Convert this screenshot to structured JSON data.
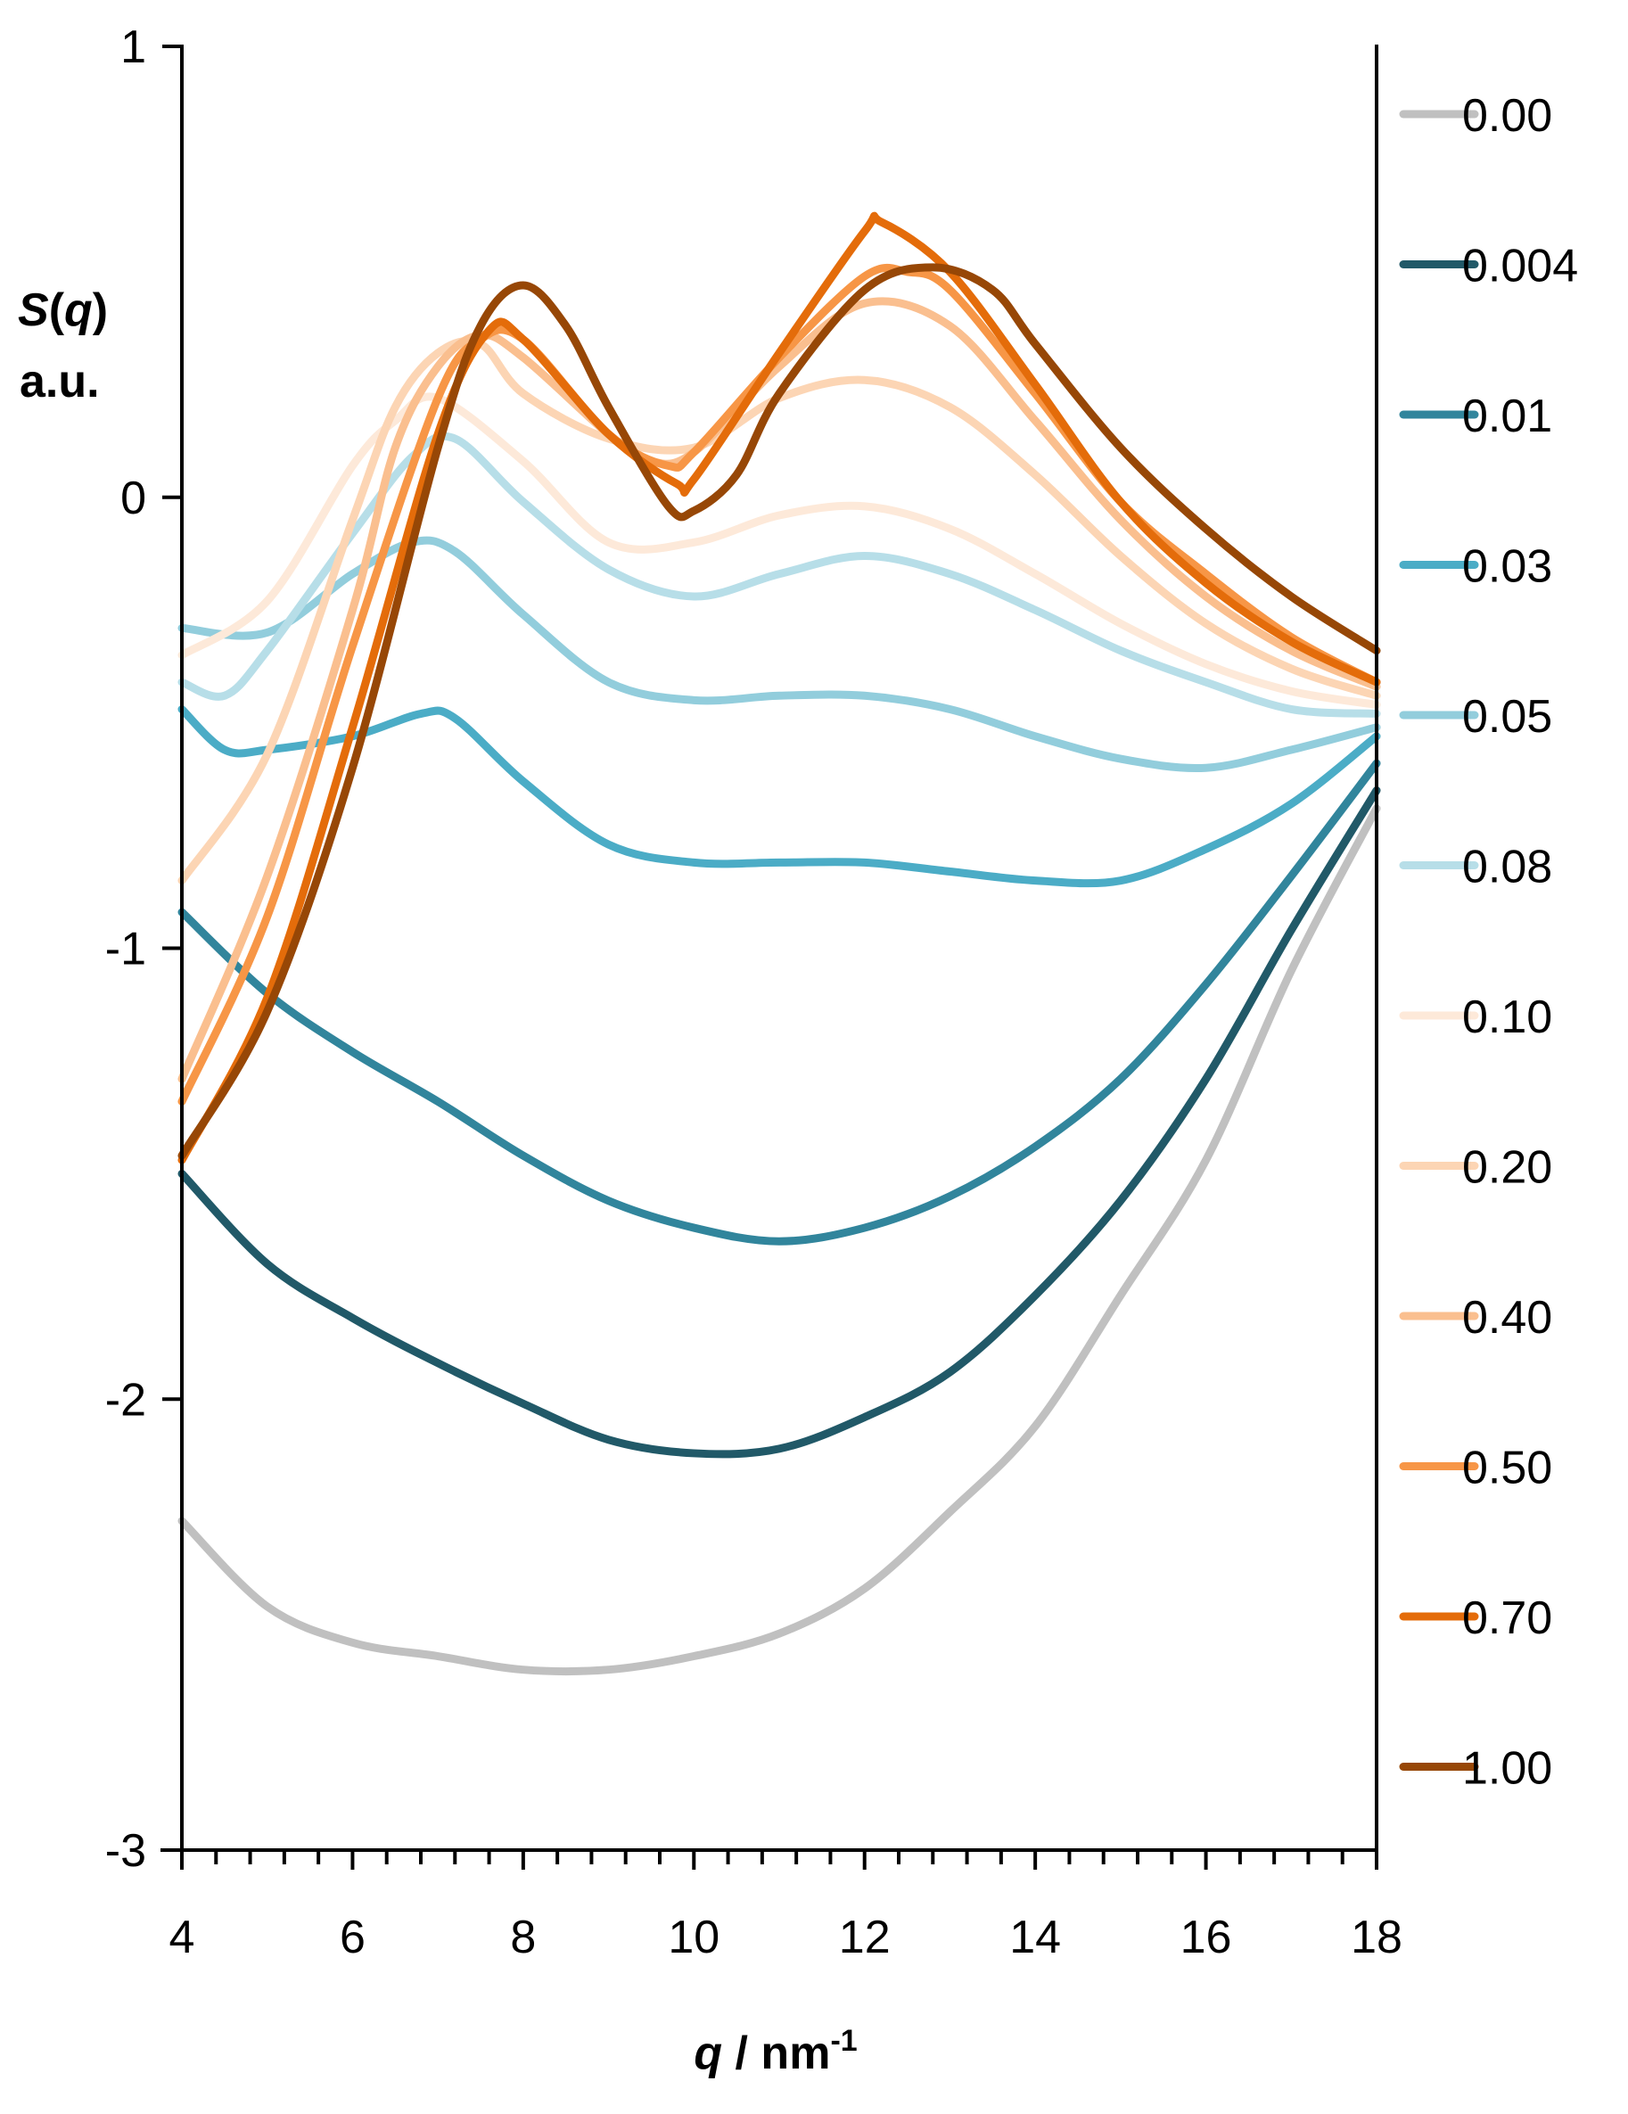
{
  "chart_data": {
    "type": "line",
    "title": "",
    "xlabel": "q / nm-1",
    "xlabel_parts": {
      "var": "q",
      "unit": " / nm",
      "sup": "-1"
    },
    "ylabel_line1": "S(q)",
    "ylabel_parts": {
      "s": "S",
      "open": "(",
      "q": "q",
      "close": ")"
    },
    "ylabel_line2": "a.u.",
    "xlim": [
      4,
      18
    ],
    "ylim": [
      -3,
      1
    ],
    "xticks": [
      "4",
      "6",
      "8",
      "10",
      "12",
      "14",
      "16",
      "18"
    ],
    "yticks": [
      "1",
      "0",
      "-1",
      "-2",
      "-3"
    ],
    "legend_position": "right",
    "grid": false,
    "series": [
      {
        "name": "0.00",
        "color": "#c0c0c0",
        "points": [
          [
            4,
            -2.27
          ],
          [
            5,
            -2.46
          ],
          [
            6,
            -2.54
          ],
          [
            7,
            -2.57
          ],
          [
            8,
            -2.6
          ],
          [
            9,
            -2.6
          ],
          [
            10,
            -2.57
          ],
          [
            11,
            -2.52
          ],
          [
            12,
            -2.42
          ],
          [
            13,
            -2.25
          ],
          [
            14,
            -2.06
          ],
          [
            15,
            -1.77
          ],
          [
            16,
            -1.47
          ],
          [
            17,
            -1.05
          ],
          [
            18,
            -0.69
          ]
        ]
      },
      {
        "name": "0.004",
        "color": "#215968",
        "points": [
          [
            4,
            -1.5
          ],
          [
            5,
            -1.7
          ],
          [
            6,
            -1.82
          ],
          [
            7,
            -1.92
          ],
          [
            8,
            -2.01
          ],
          [
            9,
            -2.09
          ],
          [
            10,
            -2.12
          ],
          [
            11,
            -2.11
          ],
          [
            12,
            -2.04
          ],
          [
            13,
            -1.94
          ],
          [
            14,
            -1.77
          ],
          [
            15,
            -1.56
          ],
          [
            16,
            -1.29
          ],
          [
            17,
            -0.96
          ],
          [
            18,
            -0.65
          ]
        ]
      },
      {
        "name": "0.01",
        "color": "#31859c",
        "points": [
          [
            4,
            -0.92
          ],
          [
            5,
            -1.1
          ],
          [
            6,
            -1.23
          ],
          [
            7,
            -1.34
          ],
          [
            8,
            -1.46
          ],
          [
            9,
            -1.56
          ],
          [
            10,
            -1.62
          ],
          [
            11,
            -1.65
          ],
          [
            12,
            -1.62
          ],
          [
            13,
            -1.55
          ],
          [
            14,
            -1.44
          ],
          [
            15,
            -1.29
          ],
          [
            16,
            -1.08
          ],
          [
            17,
            -0.84
          ],
          [
            18,
            -0.59
          ]
        ]
      },
      {
        "name": "0.03",
        "color": "#4bacc6",
        "points": [
          [
            4,
            -0.47
          ],
          [
            4.5,
            -0.56
          ],
          [
            5,
            -0.56
          ],
          [
            6,
            -0.53
          ],
          [
            6.8,
            -0.48
          ],
          [
            7.2,
            -0.49
          ],
          [
            8,
            -0.63
          ],
          [
            9,
            -0.77
          ],
          [
            10,
            -0.81
          ],
          [
            11,
            -0.81
          ],
          [
            12,
            -0.81
          ],
          [
            13,
            -0.83
          ],
          [
            14,
            -0.85
          ],
          [
            15,
            -0.85
          ],
          [
            16,
            -0.78
          ],
          [
            17,
            -0.68
          ],
          [
            18,
            -0.53
          ]
        ]
      },
      {
        "name": "0.05",
        "color": "#92cddc",
        "points": [
          [
            4,
            -0.29
          ],
          [
            5,
            -0.3
          ],
          [
            6,
            -0.17
          ],
          [
            6.7,
            -0.1
          ],
          [
            7.2,
            -0.12
          ],
          [
            8,
            -0.26
          ],
          [
            9,
            -0.41
          ],
          [
            10,
            -0.45
          ],
          [
            11,
            -0.44
          ],
          [
            12,
            -0.44
          ],
          [
            13,
            -0.47
          ],
          [
            14,
            -0.53
          ],
          [
            15,
            -0.58
          ],
          [
            16,
            -0.6
          ],
          [
            17,
            -0.56
          ],
          [
            18,
            -0.51
          ]
        ]
      },
      {
        "name": "0.08",
        "color": "#b7dee8",
        "points": [
          [
            4,
            -0.41
          ],
          [
            4.5,
            -0.44
          ],
          [
            5,
            -0.34
          ],
          [
            6,
            -0.08
          ],
          [
            6.7,
            0.09
          ],
          [
            7.2,
            0.13
          ],
          [
            8,
            -0.01
          ],
          [
            9,
            -0.16
          ],
          [
            10,
            -0.22
          ],
          [
            11,
            -0.17
          ],
          [
            12,
            -0.13
          ],
          [
            13,
            -0.17
          ],
          [
            14,
            -0.25
          ],
          [
            15,
            -0.34
          ],
          [
            16,
            -0.41
          ],
          [
            17,
            -0.47
          ],
          [
            18,
            -0.48
          ]
        ]
      },
      {
        "name": "0.10",
        "color": "#fde9d9",
        "points": [
          [
            4,
            -0.35
          ],
          [
            5,
            -0.23
          ],
          [
            6,
            0.07
          ],
          [
            6.5,
            0.17
          ],
          [
            7,
            0.22
          ],
          [
            8,
            0.08
          ],
          [
            9,
            -0.1
          ],
          [
            10,
            -0.1
          ],
          [
            11,
            -0.04
          ],
          [
            12,
            -0.02
          ],
          [
            13,
            -0.07
          ],
          [
            14,
            -0.17
          ],
          [
            15,
            -0.28
          ],
          [
            16,
            -0.37
          ],
          [
            17,
            -0.43
          ],
          [
            18,
            -0.46
          ]
        ]
      },
      {
        "name": "0.20",
        "color": "#fcd5b4",
        "points": [
          [
            4,
            -0.85
          ],
          [
            5,
            -0.57
          ],
          [
            6,
            -0.05
          ],
          [
            6.5,
            0.2
          ],
          [
            7,
            0.32
          ],
          [
            7.5,
            0.34
          ],
          [
            8,
            0.23
          ],
          [
            9,
            0.13
          ],
          [
            10,
            0.11
          ],
          [
            11,
            0.22
          ],
          [
            12,
            0.26
          ],
          [
            13,
            0.2
          ],
          [
            14,
            0.05
          ],
          [
            15,
            -0.13
          ],
          [
            16,
            -0.28
          ],
          [
            17,
            -0.38
          ],
          [
            18,
            -0.44
          ]
        ]
      },
      {
        "name": "0.40",
        "color": "#fabf8f",
        "points": [
          [
            4,
            -1.29
          ],
          [
            5,
            -0.84
          ],
          [
            6,
            -0.25
          ],
          [
            6.5,
            0.11
          ],
          [
            7,
            0.29
          ],
          [
            7.5,
            0.36
          ],
          [
            8,
            0.31
          ],
          [
            9,
            0.14
          ],
          [
            9.5,
            0.08
          ],
          [
            10,
            0.1
          ],
          [
            11,
            0.29
          ],
          [
            12,
            0.43
          ],
          [
            13,
            0.38
          ],
          [
            14,
            0.17
          ],
          [
            15,
            -0.05
          ],
          [
            16,
            -0.22
          ],
          [
            17,
            -0.34
          ],
          [
            18,
            -0.42
          ]
        ]
      },
      {
        "name": "0.50",
        "color": "#f79646",
        "points": [
          [
            4,
            -1.34
          ],
          [
            5,
            -0.93
          ],
          [
            6,
            -0.33
          ],
          [
            7,
            0.22
          ],
          [
            7.5,
            0.35
          ],
          [
            8,
            0.35
          ],
          [
            9,
            0.14
          ],
          [
            9.7,
            0.07
          ],
          [
            10,
            0.1
          ],
          [
            11,
            0.31
          ],
          [
            12,
            0.49
          ],
          [
            12.5,
            0.5
          ],
          [
            13,
            0.46
          ],
          [
            14,
            0.23
          ],
          [
            15,
            -0.01
          ],
          [
            16,
            -0.17
          ],
          [
            17,
            -0.31
          ],
          [
            18,
            -0.41
          ]
        ]
      },
      {
        "name": "0.70",
        "color": "#e46c0a",
        "points": [
          [
            4,
            -1.47
          ],
          [
            5,
            -1.11
          ],
          [
            6,
            -0.51
          ],
          [
            7,
            0.14
          ],
          [
            7.6,
            0.37
          ],
          [
            8,
            0.35
          ],
          [
            9,
            0.14
          ],
          [
            9.8,
            0.03
          ],
          [
            10,
            0.04
          ],
          [
            11,
            0.32
          ],
          [
            12,
            0.59
          ],
          [
            12.2,
            0.61
          ],
          [
            13,
            0.5
          ],
          [
            14,
            0.25
          ],
          [
            15,
            -0.01
          ],
          [
            16,
            -0.19
          ],
          [
            17,
            -0.32
          ],
          [
            18,
            -0.41
          ]
        ]
      },
      {
        "name": "1.00",
        "color": "#974706",
        "points": [
          [
            4,
            -1.46
          ],
          [
            5,
            -1.14
          ],
          [
            6,
            -0.6
          ],
          [
            7,
            0.11
          ],
          [
            7.5,
            0.38
          ],
          [
            8,
            0.47
          ],
          [
            8.5,
            0.38
          ],
          [
            9,
            0.2
          ],
          [
            9.7,
            -0.02
          ],
          [
            10,
            -0.03
          ],
          [
            10.5,
            0.05
          ],
          [
            11,
            0.23
          ],
          [
            12,
            0.46
          ],
          [
            12.8,
            0.51
          ],
          [
            13.5,
            0.46
          ],
          [
            14,
            0.34
          ],
          [
            15,
            0.11
          ],
          [
            16,
            -0.07
          ],
          [
            17,
            -0.22
          ],
          [
            18,
            -0.34
          ]
        ]
      }
    ]
  }
}
